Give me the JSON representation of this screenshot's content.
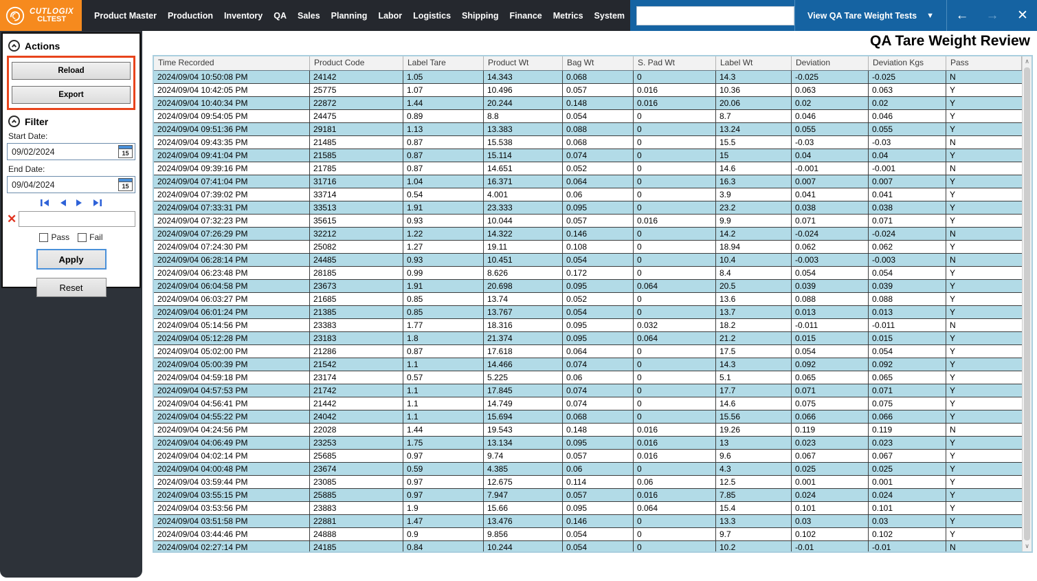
{
  "brand": {
    "name": "CUTLOGIX",
    "environment": "CLTEST"
  },
  "nav": {
    "items": [
      "Product Master",
      "Production",
      "Inventory",
      "QA",
      "Sales",
      "Planning",
      "Labor",
      "Logistics",
      "Shipping",
      "Finance",
      "Metrics",
      "System"
    ]
  },
  "topbar": {
    "search_value": "",
    "view_selector_label": "View QA Tare Weight Tests",
    "caret": "▼",
    "back_icon": "←",
    "forward_icon": "→",
    "close_icon": "✕",
    "favorite_icon": "☆"
  },
  "page": {
    "title": "QA Tare Weight Review"
  },
  "actions": {
    "header": "Actions",
    "reload_label": "Reload",
    "export_label": "Export"
  },
  "filter": {
    "header": "Filter",
    "start_date_label": "Start Date:",
    "start_date": "09/02/2024",
    "end_date_label": "End Date:",
    "end_date": "09/04/2024",
    "calendar_day": "15",
    "clear_icon": "✕",
    "search_value": "",
    "pass_label": "Pass",
    "fail_label": "Fail",
    "pass_checked": false,
    "fail_checked": false,
    "apply_label": "Apply",
    "reset_label": "Reset"
  },
  "scrollbar": {
    "up_icon": "∧",
    "down_icon": "∨"
  },
  "colors": {
    "brand_orange": "#f68a1e",
    "nav_dark": "#25282e",
    "topbar_blue": "#1563a2",
    "accent_red_border": "#e8441c",
    "row_stripe_blue": "#b2dbe7",
    "apply_focus_blue": "#4a90d9",
    "pager_blue": "#2e62d8",
    "clear_red": "#e0321e",
    "sidebar_dark": "#2d3239"
  },
  "table": {
    "columns": [
      "Time Recorded",
      "Product Code",
      "Label Tare",
      "Product Wt",
      "Bag Wt",
      "S. Pad Wt",
      "Label Wt",
      "Deviation",
      "Deviation Kgs",
      "Pass"
    ],
    "rows": [
      [
        "2024/09/04 10:50:08 PM",
        "24142",
        "1.05",
        "14.343",
        "0.068",
        "0",
        "14.3",
        "-0.025",
        "-0.025",
        "N"
      ],
      [
        "2024/09/04 10:42:05 PM",
        "25775",
        "1.07",
        "10.496",
        "0.057",
        "0.016",
        "10.36",
        "0.063",
        "0.063",
        "Y"
      ],
      [
        "2024/09/04 10:40:34 PM",
        "22872",
        "1.44",
        "20.244",
        "0.148",
        "0.016",
        "20.06",
        "0.02",
        "0.02",
        "Y"
      ],
      [
        "2024/09/04 09:54:05 PM",
        "24475",
        "0.89",
        "8.8",
        "0.054",
        "0",
        "8.7",
        "0.046",
        "0.046",
        "Y"
      ],
      [
        "2024/09/04 09:51:36 PM",
        "29181",
        "1.13",
        "13.383",
        "0.088",
        "0",
        "13.24",
        "0.055",
        "0.055",
        "Y"
      ],
      [
        "2024/09/04 09:43:35 PM",
        "21485",
        "0.87",
        "15.538",
        "0.068",
        "0",
        "15.5",
        "-0.03",
        "-0.03",
        "N"
      ],
      [
        "2024/09/04 09:41:04 PM",
        "21585",
        "0.87",
        "15.114",
        "0.074",
        "0",
        "15",
        "0.04",
        "0.04",
        "Y"
      ],
      [
        "2024/09/04 09:39:16 PM",
        "21785",
        "0.87",
        "14.651",
        "0.052",
        "0",
        "14.6",
        "-0.001",
        "-0.001",
        "N"
      ],
      [
        "2024/09/04 07:41:04 PM",
        "31716",
        "1.04",
        "16.371",
        "0.064",
        "0",
        "16.3",
        "0.007",
        "0.007",
        "Y"
      ],
      [
        "2024/09/04 07:39:02 PM",
        "33714",
        "0.54",
        "4.001",
        "0.06",
        "0",
        "3.9",
        "0.041",
        "0.041",
        "Y"
      ],
      [
        "2024/09/04 07:33:31 PM",
        "33513",
        "1.91",
        "23.333",
        "0.095",
        "0",
        "23.2",
        "0.038",
        "0.038",
        "Y"
      ],
      [
        "2024/09/04 07:32:23 PM",
        "35615",
        "0.93",
        "10.044",
        "0.057",
        "0.016",
        "9.9",
        "0.071",
        "0.071",
        "Y"
      ],
      [
        "2024/09/04 07:26:29 PM",
        "32212",
        "1.22",
        "14.322",
        "0.146",
        "0",
        "14.2",
        "-0.024",
        "-0.024",
        "N"
      ],
      [
        "2024/09/04 07:24:30 PM",
        "25082",
        "1.27",
        "19.11",
        "0.108",
        "0",
        "18.94",
        "0.062",
        "0.062",
        "Y"
      ],
      [
        "2024/09/04 06:28:14 PM",
        "24485",
        "0.93",
        "10.451",
        "0.054",
        "0",
        "10.4",
        "-0.003",
        "-0.003",
        "N"
      ],
      [
        "2024/09/04 06:23:48 PM",
        "28185",
        "0.99",
        "8.626",
        "0.172",
        "0",
        "8.4",
        "0.054",
        "0.054",
        "Y"
      ],
      [
        "2024/09/04 06:04:58 PM",
        "23673",
        "1.91",
        "20.698",
        "0.095",
        "0.064",
        "20.5",
        "0.039",
        "0.039",
        "Y"
      ],
      [
        "2024/09/04 06:03:27 PM",
        "21685",
        "0.85",
        "13.74",
        "0.052",
        "0",
        "13.6",
        "0.088",
        "0.088",
        "Y"
      ],
      [
        "2024/09/04 06:01:24 PM",
        "21385",
        "0.85",
        "13.767",
        "0.054",
        "0",
        "13.7",
        "0.013",
        "0.013",
        "Y"
      ],
      [
        "2024/09/04 05:14:56 PM",
        "23383",
        "1.77",
        "18.316",
        "0.095",
        "0.032",
        "18.2",
        "-0.011",
        "-0.011",
        "N"
      ],
      [
        "2024/09/04 05:12:28 PM",
        "23183",
        "1.8",
        "21.374",
        "0.095",
        "0.064",
        "21.2",
        "0.015",
        "0.015",
        "Y"
      ],
      [
        "2024/09/04 05:02:00 PM",
        "21286",
        "0.87",
        "17.618",
        "0.064",
        "0",
        "17.5",
        "0.054",
        "0.054",
        "Y"
      ],
      [
        "2024/09/04 05:00:39 PM",
        "21542",
        "1.1",
        "14.466",
        "0.074",
        "0",
        "14.3",
        "0.092",
        "0.092",
        "Y"
      ],
      [
        "2024/09/04 04:59:18 PM",
        "23174",
        "0.57",
        "5.225",
        "0.06",
        "0",
        "5.1",
        "0.065",
        "0.065",
        "Y"
      ],
      [
        "2024/09/04 04:57:53 PM",
        "21742",
        "1.1",
        "17.845",
        "0.074",
        "0",
        "17.7",
        "0.071",
        "0.071",
        "Y"
      ],
      [
        "2024/09/04 04:56:41 PM",
        "21442",
        "1.1",
        "14.749",
        "0.074",
        "0",
        "14.6",
        "0.075",
        "0.075",
        "Y"
      ],
      [
        "2024/09/04 04:55:22 PM",
        "24042",
        "1.1",
        "15.694",
        "0.068",
        "0",
        "15.56",
        "0.066",
        "0.066",
        "Y"
      ],
      [
        "2024/09/04 04:24:56 PM",
        "22028",
        "1.44",
        "19.543",
        "0.148",
        "0.016",
        "19.26",
        "0.119",
        "0.119",
        "N"
      ],
      [
        "2024/09/04 04:06:49 PM",
        "23253",
        "1.75",
        "13.134",
        "0.095",
        "0.016",
        "13",
        "0.023",
        "0.023",
        "Y"
      ],
      [
        "2024/09/04 04:02:14 PM",
        "25685",
        "0.97",
        "9.74",
        "0.057",
        "0.016",
        "9.6",
        "0.067",
        "0.067",
        "Y"
      ],
      [
        "2024/09/04 04:00:48 PM",
        "23674",
        "0.59",
        "4.385",
        "0.06",
        "0",
        "4.3",
        "0.025",
        "0.025",
        "Y"
      ],
      [
        "2024/09/04 03:59:44 PM",
        "23085",
        "0.97",
        "12.675",
        "0.114",
        "0.06",
        "12.5",
        "0.001",
        "0.001",
        "Y"
      ],
      [
        "2024/09/04 03:55:15 PM",
        "25885",
        "0.97",
        "7.947",
        "0.057",
        "0.016",
        "7.85",
        "0.024",
        "0.024",
        "Y"
      ],
      [
        "2024/09/04 03:53:56 PM",
        "23883",
        "1.9",
        "15.66",
        "0.095",
        "0.064",
        "15.4",
        "0.101",
        "0.101",
        "Y"
      ],
      [
        "2024/09/04 03:51:58 PM",
        "22881",
        "1.47",
        "13.476",
        "0.146",
        "0",
        "13.3",
        "0.03",
        "0.03",
        "Y"
      ],
      [
        "2024/09/04 03:44:46 PM",
        "24888",
        "0.9",
        "9.856",
        "0.054",
        "0",
        "9.7",
        "0.102",
        "0.102",
        "Y"
      ],
      [
        "2024/09/04 02:27:14 PM",
        "24185",
        "0.84",
        "10.244",
        "0.054",
        "0",
        "10.2",
        "-0.01",
        "-0.01",
        "N"
      ]
    ]
  }
}
